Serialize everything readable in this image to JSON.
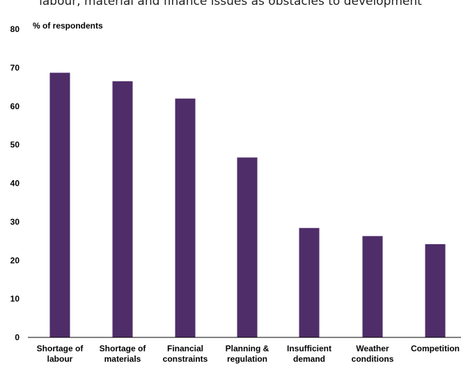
{
  "chart_data": {
    "type": "bar",
    "title": "labour, material and finance issues as obstacles to development",
    "ylabel": "% of respondents",
    "xlabel": "",
    "ylim": [
      0,
      80
    ],
    "yticks": [
      "0",
      "10",
      "20",
      "30",
      "40",
      "50",
      "60",
      "70",
      "80"
    ],
    "categories": [
      [
        "Shortage of",
        "labour"
      ],
      [
        "Shortage of",
        "materials"
      ],
      [
        "Financial",
        "constraints"
      ],
      [
        "Planning &",
        "regulation"
      ],
      [
        "Insufficient",
        "demand"
      ],
      [
        "Weather",
        "conditions"
      ],
      [
        "Competition"
      ]
    ],
    "values": [
      68.7,
      66.5,
      62.0,
      46.7,
      28.4,
      26.3,
      24.2
    ],
    "bar_color": "#4e2d69",
    "grid": false
  }
}
